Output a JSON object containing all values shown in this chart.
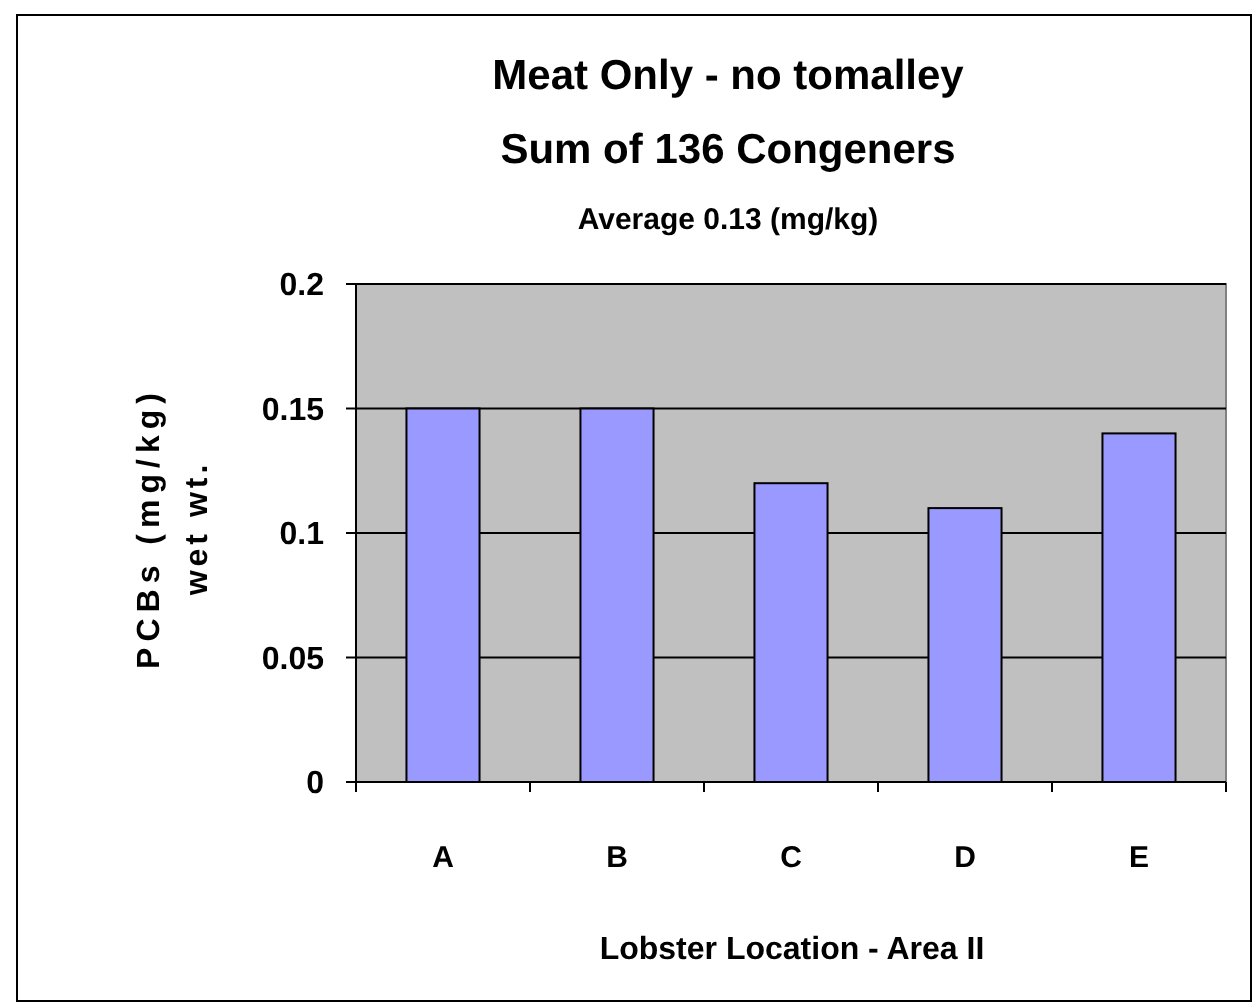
{
  "chart_data": {
    "type": "bar",
    "title": "Meat Only - no tomalley\nSum of 136 Congeners",
    "subtitle": "Average 0.13 (mg/kg)",
    "xlabel": "Lobster Location - Area II",
    "ylabel": "PCBs (mg/kg)\nwet wt.",
    "categories": [
      "A",
      "B",
      "C",
      "D",
      "E"
    ],
    "values": [
      0.15,
      0.15,
      0.12,
      0.11,
      0.14
    ],
    "color": "#9999ff",
    "ylim": [
      0,
      0.2
    ],
    "yticks": [
      0,
      0.05,
      0.1,
      0.15,
      0.2
    ],
    "grid": "y"
  }
}
